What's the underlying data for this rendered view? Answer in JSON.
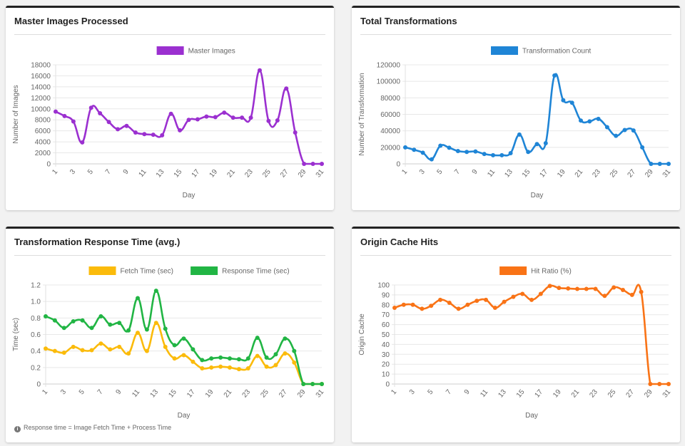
{
  "footnote": "Response time = Image Fetch Time + Process Time",
  "chart_data": [
    {
      "type": "line",
      "title": "Master Images Processed",
      "xlabel": "Day",
      "ylabel": "Number of Images",
      "ylim": [
        0,
        18000
      ],
      "ystep": 2000,
      "grid": true,
      "legend": "top",
      "x": [
        1,
        2,
        3,
        4,
        5,
        6,
        7,
        8,
        9,
        10,
        11,
        12,
        13,
        14,
        15,
        16,
        17,
        18,
        19,
        20,
        21,
        22,
        23,
        24,
        25,
        26,
        27,
        28,
        29,
        30,
        31
      ],
      "series": [
        {
          "name": "Master Images",
          "color": "#9b30d0",
          "values": [
            9500,
            8700,
            7700,
            3900,
            10200,
            9200,
            7600,
            6300,
            6900,
            5700,
            5400,
            5300,
            5200,
            9100,
            6100,
            8000,
            8100,
            8600,
            8500,
            9300,
            8400,
            8400,
            8400,
            17000,
            7800,
            7900,
            13700,
            5700,
            0,
            0,
            0
          ]
        }
      ]
    },
    {
      "type": "line",
      "title": "Total Transformations",
      "xlabel": "Day",
      "ylabel": "Number of Transformation",
      "ylim": [
        0,
        120000
      ],
      "ystep": 20000,
      "grid": true,
      "legend": "top",
      "x": [
        1,
        2,
        3,
        4,
        5,
        6,
        7,
        8,
        9,
        10,
        11,
        12,
        13,
        14,
        15,
        16,
        17,
        18,
        19,
        20,
        21,
        22,
        23,
        24,
        25,
        26,
        27,
        28,
        29,
        30,
        31
      ],
      "series": [
        {
          "name": "Transformation Count",
          "color": "#1f85d6",
          "values": [
            20000,
            17000,
            13500,
            5500,
            22000,
            19500,
            15500,
            14500,
            15000,
            12000,
            10500,
            10500,
            13000,
            35500,
            14500,
            24000,
            25000,
            107000,
            77000,
            74000,
            52500,
            51500,
            54500,
            44500,
            34000,
            41000,
            40500,
            20000,
            0,
            0,
            0
          ]
        }
      ]
    },
    {
      "type": "line",
      "title": "Transformation Response Time (avg.)",
      "xlabel": "Day",
      "ylabel": "Time (sec)",
      "ylim": [
        0,
        1.2
      ],
      "ystep": 0.2,
      "grid": true,
      "legend": "top",
      "x": [
        1,
        2,
        3,
        4,
        5,
        6,
        7,
        8,
        9,
        10,
        11,
        12,
        13,
        14,
        15,
        16,
        17,
        18,
        19,
        20,
        21,
        22,
        23,
        24,
        25,
        26,
        27,
        28,
        29,
        30,
        31
      ],
      "series": [
        {
          "name": "Fetch Time (sec)",
          "color": "#fbbb0b",
          "values": [
            0.43,
            0.4,
            0.38,
            0.45,
            0.41,
            0.41,
            0.49,
            0.42,
            0.45,
            0.37,
            0.62,
            0.4,
            0.74,
            0.45,
            0.31,
            0.35,
            0.27,
            0.19,
            0.2,
            0.21,
            0.2,
            0.18,
            0.19,
            0.34,
            0.21,
            0.23,
            0.37,
            0.26,
            0,
            0,
            0
          ]
        },
        {
          "name": "Response Time (sec)",
          "color": "#21b544",
          "values": [
            0.82,
            0.77,
            0.68,
            0.76,
            0.77,
            0.68,
            0.82,
            0.72,
            0.74,
            0.65,
            1.04,
            0.66,
            1.13,
            0.67,
            0.47,
            0.55,
            0.42,
            0.29,
            0.31,
            0.32,
            0.31,
            0.3,
            0.31,
            0.56,
            0.32,
            0.36,
            0.55,
            0.4,
            0,
            0,
            0
          ]
        }
      ]
    },
    {
      "type": "line",
      "title": "Origin Cache Hits",
      "xlabel": "Day",
      "ylabel": "Origin Cache",
      "ylim": [
        0,
        100
      ],
      "ystep": 10,
      "grid": true,
      "legend": "top",
      "x": [
        1,
        2,
        3,
        4,
        5,
        6,
        7,
        8,
        9,
        10,
        11,
        12,
        13,
        14,
        15,
        16,
        17,
        18,
        19,
        20,
        21,
        22,
        23,
        24,
        25,
        26,
        27,
        28,
        29,
        30,
        31
      ],
      "series": [
        {
          "name": "Hit Ratio (%)",
          "color": "#f97316",
          "values": [
            77,
            80,
            80,
            76,
            79,
            85,
            82,
            76,
            80,
            84,
            85,
            77,
            83,
            88,
            91,
            85,
            91,
            99,
            97,
            96.5,
            96,
            96,
            96,
            89,
            97.5,
            95,
            90,
            93,
            0,
            0,
            0
          ]
        }
      ]
    }
  ]
}
